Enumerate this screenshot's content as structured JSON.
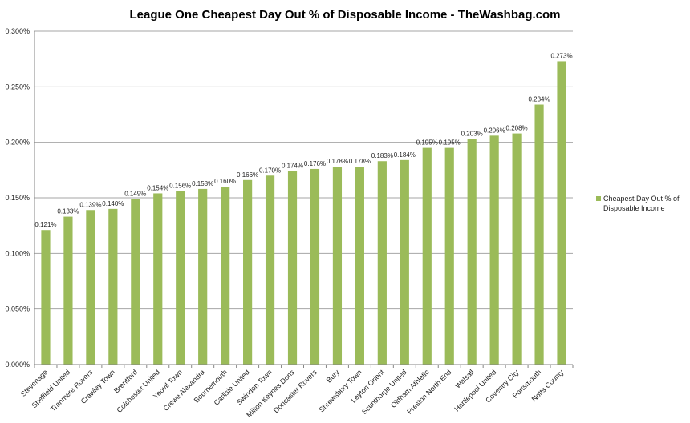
{
  "chart_data": {
    "type": "bar",
    "title": "League One Cheapest Day Out % of Disposable Income - TheWashbag.com",
    "xlabel": "",
    "ylabel": "",
    "ylim": [
      0,
      0.3
    ],
    "yticks": [
      "0.000%",
      "0.050%",
      "0.100%",
      "0.150%",
      "0.200%",
      "0.250%",
      "0.300%"
    ],
    "ytick_values": [
      0,
      0.05,
      0.1,
      0.15,
      0.2,
      0.25,
      0.3
    ],
    "grid": true,
    "legend_position": "right",
    "bar_color": "#9bbb59",
    "categories": [
      "Stevenage",
      "Sheffield United",
      "Tranmere Rovers",
      "Crawley Town",
      "Brentford",
      "Colchester United",
      "Yeovil Town",
      "Crewe Alexandra",
      "Bournemouth",
      "Carlisle United",
      "Swindon Town",
      "Milton Keynes Dons",
      "Doncaster Rovers",
      "Bury",
      "Shrewsbury Town",
      "Leyton Orient",
      "Scunthorpe United",
      "Oldham Athletic",
      "Preston North End",
      "Walsall",
      "Hartlepool United",
      "Coventry City",
      "Portsmouth",
      "Notts County"
    ],
    "series": [
      {
        "name": "Cheapest Day Out % of Disposable Income",
        "values": [
          0.121,
          0.133,
          0.139,
          0.14,
          0.149,
          0.154,
          0.156,
          0.158,
          0.16,
          0.166,
          0.17,
          0.174,
          0.176,
          0.178,
          0.178,
          0.183,
          0.184,
          0.195,
          0.195,
          0.203,
          0.206,
          0.208,
          0.234,
          0.273
        ],
        "labels": [
          "0.121%",
          "0.133%",
          "0.139%",
          "0.140%",
          "0.149%",
          "0.154%",
          "0.156%",
          "0.158%",
          "0.160%",
          "0.166%",
          "0.170%",
          "0.174%",
          "0.176%",
          "0.178%",
          "0.178%",
          "0.183%",
          "0.184%",
          "0.195%",
          "0.195%",
          "0.203%",
          "0.206%",
          "0.208%",
          "0.234%",
          "0.273%"
        ]
      }
    ],
    "legend": {
      "line1": "Cheapest Day Out % of",
      "line2": "Disposable Income"
    }
  }
}
